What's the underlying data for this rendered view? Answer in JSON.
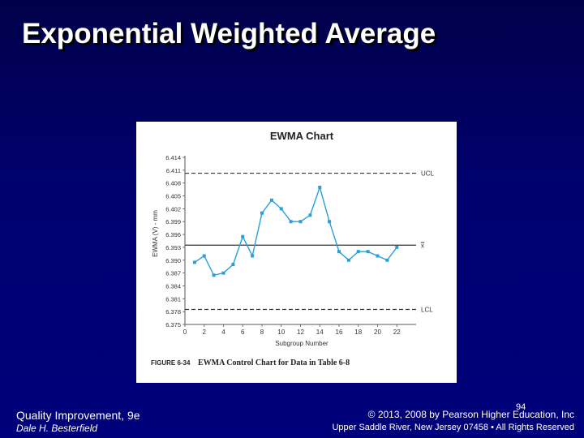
{
  "slide": {
    "title": "Exponential Weighted Average",
    "footer_left_line1": "Quality Improvement, 9e",
    "footer_left_line2": "Dale H. Besterfield",
    "page_number": "94",
    "footer_right_line1": "© 2013, 2008 by Pearson Higher Education, Inc",
    "footer_right_line2": "Upper Saddle River, New Jersey 07458 • All Rights Reserved"
  },
  "chart_data": {
    "type": "line",
    "title": "EWMA Chart",
    "xlabel": "Subgroup Number",
    "ylabel": "EWMA (V) - mm",
    "caption_label": "FIGURE 6-34",
    "caption_text": "EWMA Control Chart for Data in Table 6-8",
    "xlim": [
      0,
      24
    ],
    "ylim": [
      6.375,
      6.414
    ],
    "x_ticks": [
      0,
      2,
      4,
      6,
      8,
      10,
      12,
      14,
      16,
      18,
      20,
      22
    ],
    "y_ticks": [
      "6.414",
      "6.411",
      "6.408",
      "6.405",
      "6.402",
      "6.399",
      "6.396",
      "6.393",
      "6.390",
      "6.387",
      "6.384",
      "6.381",
      "6.378",
      "6.375"
    ],
    "grid": false,
    "series": [
      {
        "color": "#2a9fd6",
        "x": [
          1,
          2,
          3,
          4,
          5,
          6,
          7,
          8,
          9,
          10,
          11,
          12,
          13,
          14,
          15,
          16,
          17,
          18,
          19,
          20,
          21,
          22
        ],
        "y": [
          6.3895,
          6.391,
          6.3865,
          6.387,
          6.389,
          6.3955,
          6.391,
          6.401,
          6.404,
          6.402,
          6.399,
          6.399,
          6.4005,
          6.407,
          6.399,
          6.392,
          6.39,
          6.392,
          6.392,
          6.391,
          6.39,
          6.393
        ]
      }
    ],
    "reference_lines": [
      {
        "label": "UCL",
        "y": 6.4103,
        "style": "dashed"
      },
      {
        "label": "x̿",
        "y": 6.3935,
        "style": "solid"
      },
      {
        "label": "LCL",
        "y": 6.3785,
        "style": "dashed"
      }
    ]
  }
}
